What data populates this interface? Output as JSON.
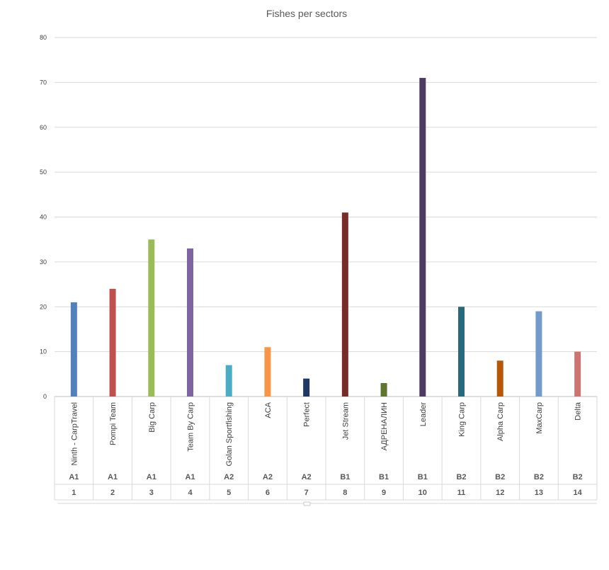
{
  "chart_data": {
    "type": "bar",
    "title": "Fishes per sectors",
    "xlabel": "",
    "ylabel": "",
    "ylim": [
      0,
      80
    ],
    "yticks": [
      0,
      10,
      20,
      30,
      40,
      50,
      60,
      70,
      80
    ],
    "grid": true,
    "legend": "none",
    "categories": [
      {
        "team": "Ninth - CarpTravel",
        "sector": "A1",
        "index": "1"
      },
      {
        "team": "Pompi Team",
        "sector": "A1",
        "index": "2"
      },
      {
        "team": "Big Carp",
        "sector": "A1",
        "index": "3"
      },
      {
        "team": "Team By Carp",
        "sector": "A1",
        "index": "4"
      },
      {
        "team": "Golan Sportfishing",
        "sector": "A2",
        "index": "5"
      },
      {
        "team": "ACA",
        "sector": "A2",
        "index": "6"
      },
      {
        "team": "Perfect",
        "sector": "A2",
        "index": "7"
      },
      {
        "team": "Jet Stream",
        "sector": "B1",
        "index": "8"
      },
      {
        "team": "АДРЕНАЛИН",
        "sector": "B1",
        "index": "9"
      },
      {
        "team": "Leader",
        "sector": "B1",
        "index": "10"
      },
      {
        "team": "King Carp",
        "sector": "B2",
        "index": "11"
      },
      {
        "team": "Alpha Carp",
        "sector": "B2",
        "index": "12"
      },
      {
        "team": "MaxCarp",
        "sector": "B2",
        "index": "13"
      },
      {
        "team": "Delta",
        "sector": "B2",
        "index": "14"
      }
    ],
    "values": [
      21,
      24,
      35,
      33,
      7,
      11,
      4,
      41,
      3,
      71,
      20,
      8,
      19,
      10
    ],
    "colors": [
      "#4f81bd",
      "#c0504d",
      "#9bbb59",
      "#8064a2",
      "#4bacc6",
      "#f79646",
      "#1f3864",
      "#772c2a",
      "#5f7530",
      "#4d3b62",
      "#276a7c",
      "#b65708",
      "#729aca",
      "#cd7371"
    ]
  }
}
